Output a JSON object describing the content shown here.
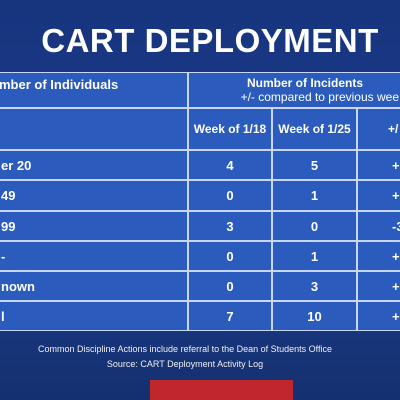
{
  "title": "CART DEPLOYMENT",
  "table": {
    "header": {
      "left": "mber of Individuals",
      "right": "Number of Incidents",
      "right_sub": "+/- compared to previous wee"
    },
    "subheader": [
      "",
      "Week of 1/18",
      "Week of 1/25",
      "+/"
    ],
    "rows": [
      [
        "er 20",
        "4",
        "5",
        "+"
      ],
      [
        "49",
        "0",
        "1",
        "+"
      ],
      [
        "99",
        "3",
        "0",
        "-3"
      ],
      [
        "-",
        "0",
        "1",
        "+"
      ],
      [
        "nown",
        "0",
        "3",
        "+"
      ],
      [
        "l",
        "7",
        "10",
        "+"
      ]
    ]
  },
  "footer": {
    "note": "Common Discipline Actions include referral to the Dean of Students Office",
    "source": "Source: CART Deployment Activity Log"
  }
}
